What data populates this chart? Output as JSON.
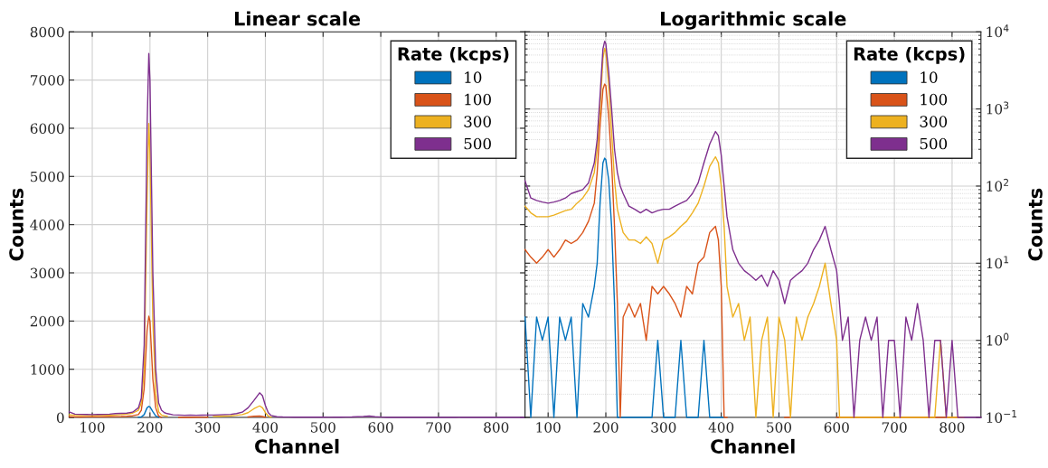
{
  "chart_data": [
    {
      "type": "line",
      "title": "Linear scale",
      "xlabel": "Channel",
      "ylabel": "Counts",
      "legend_title": "Rate (kcps)",
      "legend": "top right",
      "grid": true,
      "xlim": [
        60,
        850
      ],
      "xticks": [
        100,
        200,
        300,
        400,
        500,
        600,
        700,
        800
      ],
      "ylim": [
        0,
        8000
      ],
      "yticks": [
        0,
        1000,
        2000,
        3000,
        4000,
        5000,
        6000,
        7000,
        8000
      ],
      "x": [
        60,
        70,
        80,
        90,
        100,
        110,
        120,
        130,
        140,
        150,
        160,
        170,
        180,
        185,
        190,
        195,
        198,
        200,
        205,
        210,
        215,
        220,
        225,
        230,
        240,
        250,
        260,
        270,
        280,
        290,
        300,
        310,
        320,
        330,
        340,
        350,
        360,
        370,
        380,
        390,
        395,
        400,
        405,
        410,
        420,
        430,
        440,
        450,
        460,
        470,
        480,
        490,
        500,
        510,
        520,
        530,
        540,
        550,
        560,
        570,
        580,
        590,
        600,
        605,
        610,
        620,
        630,
        640,
        650,
        660,
        670,
        680,
        690,
        700,
        710,
        720,
        730,
        740,
        750,
        760,
        770,
        780,
        790,
        800,
        810,
        820,
        830,
        840,
        850
      ],
      "series": [
        {
          "name": "10",
          "color": "#0072bd",
          "values": [
            null,
            null,
            null,
            null,
            null,
            null,
            null,
            null,
            null,
            null,
            null,
            null,
            5,
            10,
            60,
            200,
            230,
            220,
            120,
            30,
            3,
            null,
            null,
            null,
            null,
            null,
            null,
            null,
            null,
            null,
            null,
            null,
            null,
            null,
            null,
            null,
            null,
            null,
            null,
            null,
            null,
            null,
            null,
            null,
            null,
            null,
            null,
            null,
            null,
            null,
            null,
            null,
            null,
            null,
            null,
            null,
            null,
            null,
            null,
            null,
            null,
            null,
            null,
            null,
            null,
            null,
            null,
            null,
            null,
            null,
            null,
            null,
            null,
            null,
            null,
            null,
            null,
            null,
            null,
            null,
            null,
            null,
            null,
            null,
            null,
            null,
            null,
            null,
            null
          ]
        },
        {
          "name": "100",
          "color": "#d95319",
          "values": [
            15,
            12,
            10,
            12,
            15,
            12,
            15,
            20,
            18,
            20,
            25,
            35,
            60,
            150,
            600,
            1800,
            2100,
            2000,
            800,
            200,
            30,
            3,
            null,
            null,
            null,
            2,
            3,
            1,
            5,
            4,
            5,
            null,
            null,
            null,
            null,
            null,
            null,
            12,
            25,
            30,
            20,
            5,
            null,
            null,
            null,
            null,
            null,
            null,
            null,
            null,
            null,
            null,
            null,
            null,
            null,
            null,
            null,
            null,
            null,
            null,
            null,
            null,
            null,
            null,
            null,
            null,
            null,
            null,
            null,
            null,
            null,
            null,
            null,
            null,
            null,
            null,
            null,
            null,
            null,
            null,
            null,
            null,
            null,
            null,
            null,
            null,
            null,
            null,
            null
          ]
        },
        {
          "name": "300",
          "color": "#edb120",
          "values": [
            55,
            45,
            40,
            40,
            40,
            42,
            45,
            48,
            50,
            60,
            70,
            90,
            150,
            300,
            1000,
            4500,
            6100,
            5500,
            2000,
            500,
            120,
            50,
            35,
            25,
            null,
            null,
            null,
            null,
            null,
            null,
            null,
            22,
            25,
            30,
            35,
            45,
            60,
            100,
            180,
            240,
            200,
            100,
            30,
            5,
            null,
            null,
            null,
            null,
            null,
            null,
            null,
            null,
            null,
            null,
            null,
            null,
            null,
            null,
            null,
            null,
            null,
            null,
            null,
            null,
            null,
            null,
            null,
            null,
            null,
            null,
            null,
            null,
            null,
            null,
            null,
            null,
            null,
            null,
            null,
            null,
            null,
            null,
            null,
            null,
            null,
            null,
            null,
            null,
            null
          ]
        },
        {
          "name": "500",
          "color": "#7e2f8e",
          "values": [
            117,
            70,
            65,
            62,
            60,
            62,
            65,
            70,
            80,
            85,
            90,
            110,
            200,
            400,
            1500,
            6000,
            7550,
            7000,
            3000,
            1000,
            300,
            150,
            100,
            80,
            55,
            50,
            45,
            50,
            45,
            48,
            50,
            50,
            55,
            60,
            65,
            80,
            110,
            200,
            350,
            510,
            450,
            250,
            100,
            40,
            15,
            10,
            8,
            7,
            6,
            7,
            5,
            8,
            6,
            3,
            6,
            7,
            8,
            10,
            15,
            20,
            30,
            15,
            8,
            3,
            1,
            2,
            0,
            1,
            2,
            1,
            2,
            0,
            1,
            1,
            0,
            2,
            1,
            3,
            1,
            0,
            1,
            1,
            0,
            1,
            0,
            0,
            0,
            0,
            0
          ]
        }
      ]
    },
    {
      "type": "line",
      "title": "Logarithmic scale",
      "xlabel": "Channel",
      "y2label": "Counts",
      "legend_title": "Rate (kcps)",
      "legend": "top right",
      "grid": true,
      "log": "y2",
      "xlim": [
        60,
        850
      ],
      "xticks": [
        100,
        200,
        300,
        400,
        500,
        600,
        700,
        800
      ],
      "y2lim": [
        0.1,
        10000
      ],
      "y2ticks": [
        {
          "value": 0.1,
          "label": "10$^{−1}$"
        },
        {
          "value": 1,
          "label": "10$^{0}$"
        },
        {
          "value": 10,
          "label": "10$^{1}$"
        },
        {
          "value": 100,
          "label": "10$^{2}$"
        },
        {
          "value": 1000,
          "label": "10$^{3}$"
        },
        {
          "value": 10000,
          "label": "10$^{4}$"
        }
      ],
      "x": [
        60,
        70,
        80,
        90,
        100,
        110,
        120,
        130,
        140,
        150,
        160,
        170,
        180,
        185,
        190,
        195,
        198,
        200,
        205,
        210,
        215,
        220,
        225,
        230,
        240,
        250,
        260,
        270,
        280,
        290,
        300,
        310,
        320,
        330,
        340,
        350,
        360,
        370,
        380,
        390,
        395,
        400,
        405,
        410,
        420,
        430,
        440,
        450,
        460,
        470,
        480,
        490,
        500,
        510,
        520,
        530,
        540,
        550,
        560,
        570,
        580,
        590,
        600,
        605,
        610,
        620,
        630,
        640,
        650,
        660,
        670,
        680,
        690,
        700,
        710,
        720,
        730,
        740,
        750,
        760,
        770,
        780,
        790,
        800,
        810,
        820,
        830,
        840,
        850
      ],
      "series": [
        {
          "name": "10",
          "color": "#0072bd",
          "axis": "y2",
          "values": [
            2,
            0.1,
            2,
            1,
            2,
            0.1,
            2,
            1,
            2,
            0.1,
            3,
            2,
            5,
            10,
            60,
            200,
            230,
            220,
            120,
            30,
            3,
            0.1,
            0.1,
            0.1,
            0.1,
            0.1,
            0.1,
            0.1,
            0.1,
            1,
            0.1,
            0.1,
            0.1,
            1,
            0.1,
            0.1,
            0.1,
            1,
            0.1,
            0.1,
            0.1,
            0.1,
            0.1,
            null,
            null,
            null,
            null,
            null,
            null,
            null,
            null,
            null,
            null,
            null,
            null,
            null,
            null,
            null,
            null,
            null,
            null,
            null,
            null,
            null,
            null,
            null,
            null,
            null,
            null,
            null,
            null,
            null,
            null,
            null,
            null,
            null,
            null,
            null,
            null,
            null,
            null,
            null,
            null,
            null,
            null,
            null,
            null,
            null,
            null
          ]
        },
        {
          "name": "100",
          "color": "#d95319",
          "axis": "y2",
          "values": [
            15,
            12,
            10,
            12,
            15,
            12,
            15,
            20,
            18,
            20,
            25,
            35,
            60,
            150,
            600,
            1800,
            2100,
            2000,
            800,
            200,
            30,
            3,
            0.1,
            2,
            3,
            2,
            3,
            1,
            5,
            4,
            5,
            4,
            3,
            2,
            5,
            4,
            10,
            12,
            25,
            30,
            20,
            5,
            0.1,
            0.1,
            null,
            null,
            null,
            null,
            null,
            null,
            null,
            null,
            null,
            0.1,
            0.1,
            null,
            null,
            null,
            null,
            null,
            null,
            null,
            0.1,
            0.1,
            0.1,
            0.1,
            0.1,
            0.1,
            0.1,
            0.1,
            0.1,
            0.1,
            0.1,
            0.1,
            0.1,
            0.1,
            0.1,
            0.1,
            0.1,
            0.1,
            0.1,
            0.1,
            0.1,
            0.1,
            0.1,
            0.1,
            null,
            null,
            null
          ]
        },
        {
          "name": "300",
          "color": "#edb120",
          "axis": "y2",
          "values": [
            55,
            45,
            40,
            40,
            40,
            42,
            45,
            48,
            50,
            60,
            70,
            90,
            150,
            300,
            1000,
            4500,
            6100,
            5500,
            2000,
            500,
            120,
            50,
            35,
            25,
            20,
            20,
            18,
            22,
            18,
            10,
            20,
            22,
            25,
            30,
            35,
            45,
            60,
            100,
            180,
            240,
            200,
            100,
            30,
            5,
            2,
            3,
            1,
            2,
            0.1,
            1,
            2,
            0.1,
            2,
            1,
            0.1,
            2,
            1,
            2,
            3,
            5,
            10,
            3,
            1,
            0.1,
            0.1,
            0.1,
            0.1,
            0.1,
            0.1,
            0.1,
            0.1,
            0.1,
            0.1,
            0.1,
            0.1,
            0.1,
            0.1,
            0.1,
            0.1,
            0.1,
            0.1,
            1,
            0.1,
            0.1,
            0.1,
            0.1,
            null,
            null,
            null
          ]
        },
        {
          "name": "500",
          "color": "#7e2f8e",
          "axis": "y2",
          "values": [
            117,
            70,
            65,
            62,
            60,
            62,
            65,
            70,
            80,
            85,
            90,
            110,
            200,
            400,
            1500,
            6000,
            7550,
            7000,
            3000,
            1000,
            300,
            150,
            100,
            80,
            55,
            50,
            45,
            50,
            45,
            48,
            50,
            50,
            55,
            60,
            65,
            80,
            110,
            200,
            350,
            510,
            450,
            250,
            100,
            40,
            15,
            10,
            8,
            7,
            6,
            7,
            5,
            8,
            6,
            3,
            6,
            7,
            8,
            10,
            15,
            20,
            30,
            15,
            8,
            3,
            1,
            2,
            0.1,
            1,
            2,
            1,
            2,
            0.1,
            1,
            1,
            0.1,
            2,
            1,
            3,
            1,
            0.1,
            1,
            1,
            0.1,
            1,
            0.1,
            0.1,
            0.1,
            0.1,
            0.1
          ]
        }
      ]
    }
  ]
}
